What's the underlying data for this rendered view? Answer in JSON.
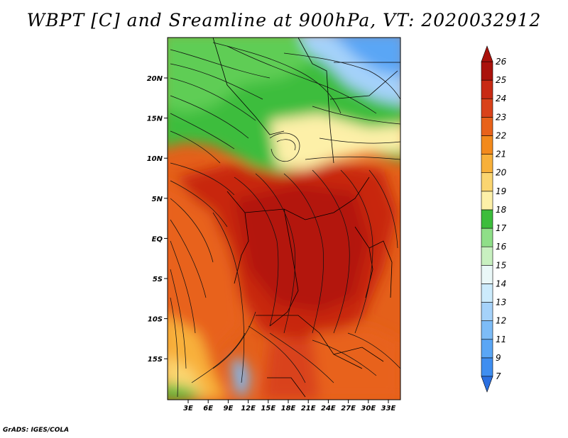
{
  "title": "WBPT [C] and Sreamline at 900hPa, VT: 2020032912",
  "footer": "GrADS: IGES/COLA",
  "lat_ticks": [
    "20N",
    "15N",
    "10N",
    "5N",
    "EQ",
    "5S",
    "10S",
    "15S"
  ],
  "lon_ticks": [
    "3E",
    "6E",
    "9E",
    "12E",
    "15E",
    "18E",
    "21E",
    "24E",
    "27E",
    "30E",
    "33E"
  ],
  "colorbar": {
    "levels": [
      "7",
      "9",
      "11",
      "12",
      "13",
      "14",
      "15",
      "16",
      "17",
      "18",
      "19",
      "20",
      "21",
      "22",
      "23",
      "24",
      "25",
      "26"
    ],
    "colors": [
      "#2a6fe0",
      "#3f8ef0",
      "#5aa6f5",
      "#7dbcf7",
      "#a5d2fa",
      "#ccebfc",
      "#eaf8f8",
      "#c8f0c0",
      "#8fdf88",
      "#3cbd3c",
      "#fdf0a8",
      "#fbd570",
      "#f8b03a",
      "#f38a1c",
      "#e8621a",
      "#d9421a",
      "#c82a14",
      "#aa120c"
    ]
  },
  "colors": {
    "hot": "#c8260f",
    "warm": "#e8621a",
    "cool_green": "#4fc44a",
    "sea_blue": "#7ab8ee"
  }
}
